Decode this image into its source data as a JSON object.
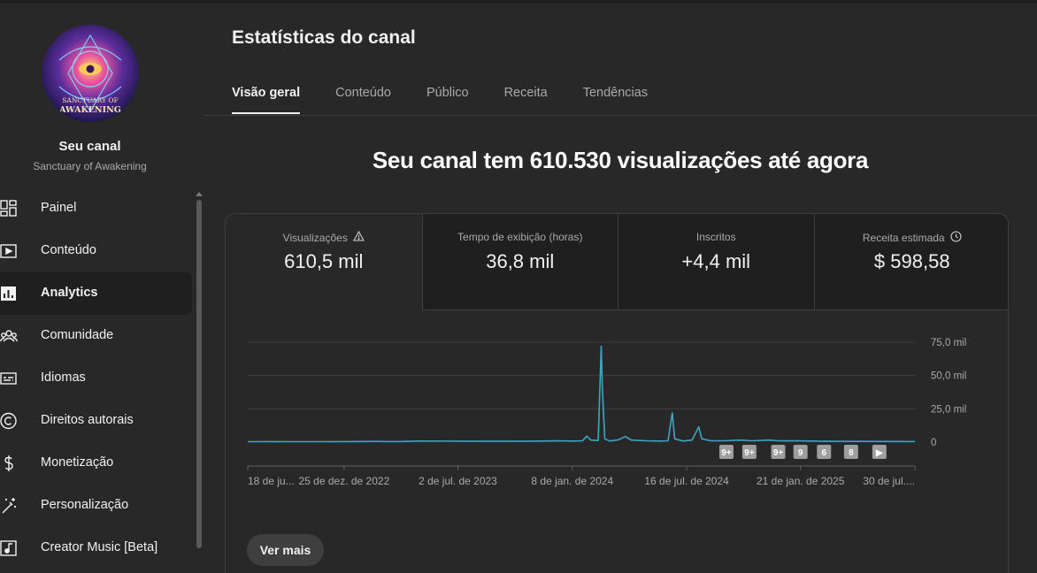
{
  "channel": {
    "title": "Seu canal",
    "name": "Sanctuary of Awakening",
    "logo_text_top": "SANCTUARY OF",
    "logo_text_bottom": "AWAKENING"
  },
  "sidebar": {
    "items": [
      {
        "label": "Painel",
        "icon": "dashboard-icon",
        "active": false
      },
      {
        "label": "Conteúdo",
        "icon": "content-icon",
        "active": false
      },
      {
        "label": "Analytics",
        "icon": "analytics-icon",
        "active": true
      },
      {
        "label": "Comunidade",
        "icon": "community-icon",
        "active": false
      },
      {
        "label": "Idiomas",
        "icon": "subtitles-icon",
        "active": false
      },
      {
        "label": "Direitos autorais",
        "icon": "copyright-icon",
        "active": false
      },
      {
        "label": "Monetização",
        "icon": "dollar-icon",
        "active": false
      },
      {
        "label": "Personalização",
        "icon": "magic-wand-icon",
        "active": false
      },
      {
        "label": "Creator Music [Beta]",
        "icon": "music-icon",
        "active": false
      }
    ]
  },
  "header": {
    "title": "Estatísticas do canal"
  },
  "tabs": [
    {
      "label": "Visão geral",
      "active": true
    },
    {
      "label": "Conteúdo",
      "active": false
    },
    {
      "label": "Público",
      "active": false
    },
    {
      "label": "Receita",
      "active": false
    },
    {
      "label": "Tendências",
      "active": false
    }
  ],
  "headline": "Seu canal tem 610.530 visualizações até agora",
  "metrics": [
    {
      "label": "Visualizações",
      "value": "610,5 mil",
      "icon": "warning-icon",
      "active": true
    },
    {
      "label": "Tempo de exibição (horas)",
      "value": "36,8 mil",
      "icon": "",
      "active": false
    },
    {
      "label": "Inscritos",
      "value": "+4,4 mil",
      "icon": "",
      "active": false
    },
    {
      "label": "Receita estimada",
      "value": "$ 598,58",
      "icon": "clock-icon",
      "active": false
    }
  ],
  "colors": {
    "line": "#3ea6c4",
    "background": "#282828",
    "card_tab": "#1f1f1f",
    "accent_text": "#f1f1f1"
  },
  "chart_data": {
    "type": "line",
    "series": [
      {
        "values": [
          [
            "2022-07-18",
            0.3
          ],
          [
            "2022-09-01",
            0.4
          ],
          [
            "2022-10-15",
            0.3
          ],
          [
            "2022-12-25",
            0.4
          ],
          [
            "2023-02-15",
            0.5
          ],
          [
            "2023-03-20",
            0.4
          ],
          [
            "2023-05-01",
            0.8
          ],
          [
            "2023-07-02",
            0.7
          ],
          [
            "2023-09-01",
            0.6
          ],
          [
            "2023-11-01",
            0.7
          ],
          [
            "2023-12-20",
            0.9
          ],
          [
            "2024-01-08",
            0.8
          ],
          [
            "2024-01-25",
            1.0
          ],
          [
            "2024-02-01",
            4.5
          ],
          [
            "2024-02-08",
            1.5
          ],
          [
            "2024-02-20",
            1.2
          ],
          [
            "2024-02-25",
            72.0
          ],
          [
            "2024-02-27",
            40.0
          ],
          [
            "2024-03-02",
            2.5
          ],
          [
            "2024-03-10",
            0.8
          ],
          [
            "2024-03-25",
            1.8
          ],
          [
            "2024-04-05",
            4.2
          ],
          [
            "2024-04-15",
            1.5
          ],
          [
            "2024-05-10",
            1.0
          ],
          [
            "2024-06-01",
            0.8
          ],
          [
            "2024-06-15",
            1.0
          ],
          [
            "2024-06-22",
            22.0
          ],
          [
            "2024-06-26",
            2.5
          ],
          [
            "2024-07-10",
            0.8
          ],
          [
            "2024-07-25",
            1.5
          ],
          [
            "2024-08-05",
            11.5
          ],
          [
            "2024-08-10",
            2.5
          ],
          [
            "2024-08-25",
            1.0
          ],
          [
            "2024-09-15",
            1.0
          ],
          [
            "2024-10-15",
            1.5
          ],
          [
            "2024-11-01",
            1.0
          ],
          [
            "2024-12-01",
            1.5
          ],
          [
            "2024-12-15",
            1.0
          ],
          [
            "2025-01-21",
            0.9
          ],
          [
            "2025-03-01",
            0.6
          ],
          [
            "2025-05-01",
            0.5
          ],
          [
            "2025-07-30",
            0.4
          ]
        ]
      }
    ],
    "x_ticks": [
      "18 de ju...",
      "25 de dez. de 2022",
      "2 de jul. de 2023",
      "8 de jan. de 2024",
      "16 de jul. de 2024",
      "21 de jan. de 2025",
      "30 de jul...."
    ],
    "x_tick_dates": [
      "2022-07-18",
      "2022-12-25",
      "2023-07-02",
      "2024-01-08",
      "2024-07-16",
      "2025-01-21",
      "2025-07-30"
    ],
    "xlim": [
      "2022-07-18",
      "2025-07-30"
    ],
    "y_ticks": [
      {
        "value": 0,
        "label": "0"
      },
      {
        "value": 25,
        "label": "25,0 mil"
      },
      {
        "value": 50,
        "label": "50,0 mil"
      },
      {
        "value": 75,
        "label": "75,0 mil"
      }
    ],
    "ylim": [
      0,
      75
    ],
    "grid": true,
    "markers": [
      {
        "label": "9+",
        "date": "2024-09-20"
      },
      {
        "label": "9+",
        "date": "2024-10-28"
      },
      {
        "label": "9+",
        "date": "2024-12-15"
      },
      {
        "label": "9",
        "date": "2025-01-21"
      },
      {
        "label": "6",
        "date": "2025-03-01"
      },
      {
        "label": "8",
        "date": "2025-04-15"
      },
      {
        "label": "▶",
        "date": "2025-06-01"
      }
    ]
  },
  "footer": {
    "more_label": "Ver mais"
  }
}
